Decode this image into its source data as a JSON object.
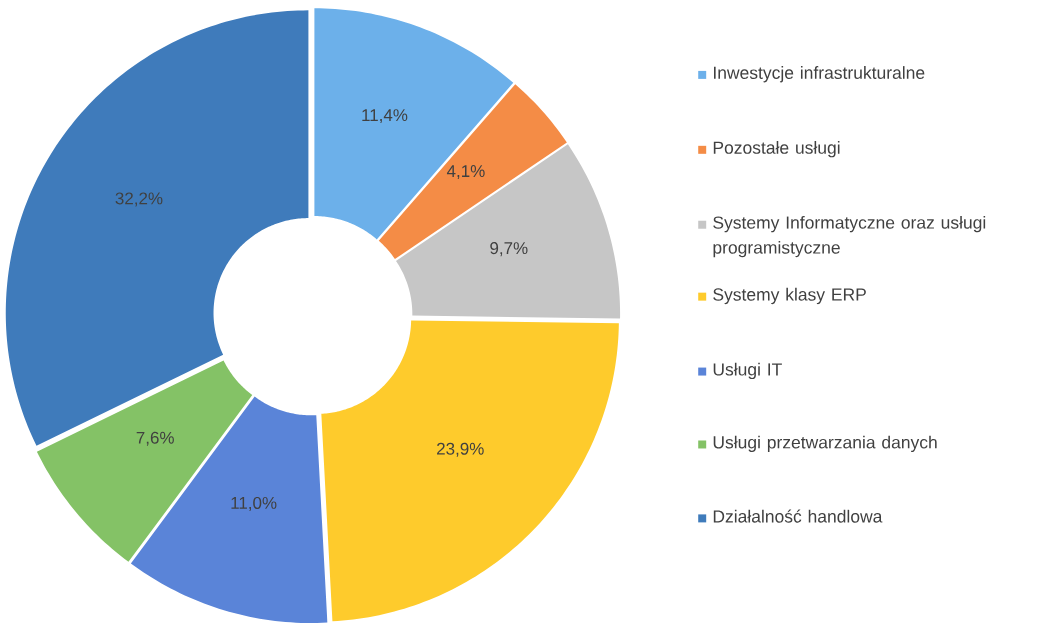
{
  "chart_data": {
    "type": "donut",
    "categories": [
      "Inwestycje infrastrukturalne",
      "Pozostałe usługi",
      "Systemy Informatyczne oraz usługi programistyczne",
      "Systemy klasy ERP",
      "Usługi IT",
      "Usługi przetwarzania danych",
      "Działalność handlowa"
    ],
    "values": [
      11.4,
      4.1,
      9.7,
      23.9,
      11.0,
      7.6,
      32.2
    ],
    "value_labels": [
      "11,4%",
      "4,1%",
      "9,7%",
      "23,9%",
      "11,0%",
      "7,6%",
      "32,2%"
    ],
    "colors": [
      "#6cb0ea",
      "#f48c46",
      "#c6c6c6",
      "#fecb2c",
      "#5a84d8",
      "#84c266",
      "#3f7bbb"
    ],
    "legend": "right"
  }
}
